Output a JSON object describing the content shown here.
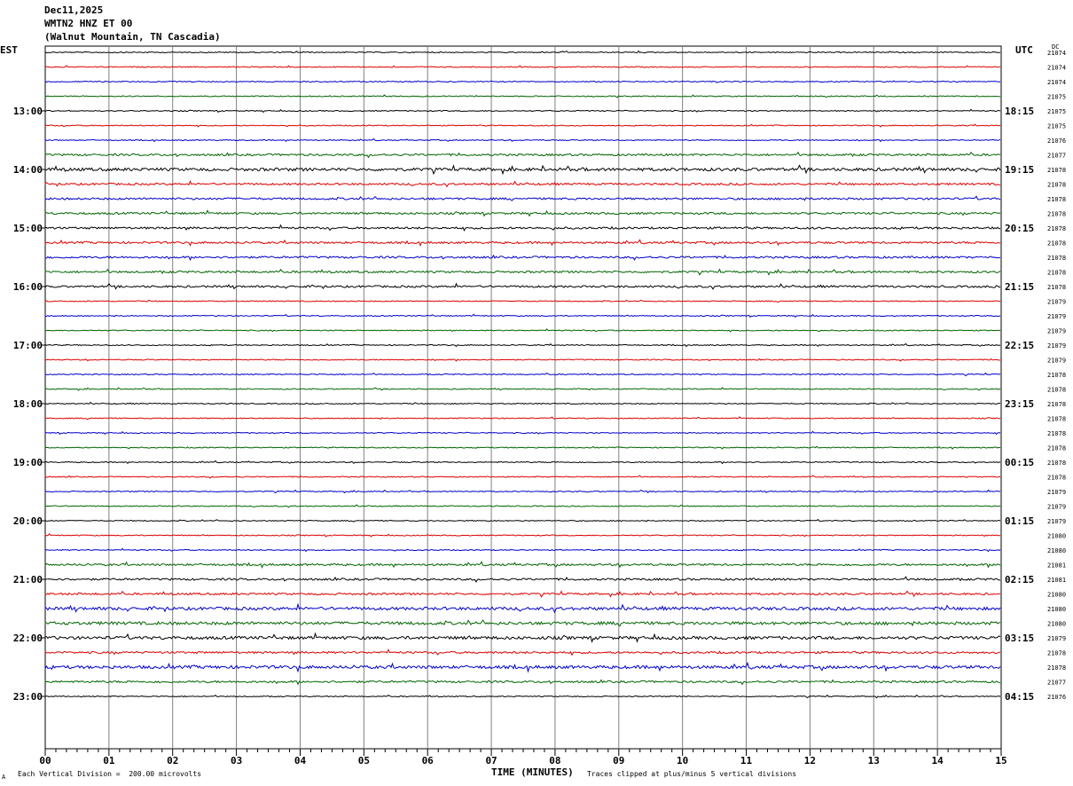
{
  "header": {
    "date": "Dec11,2025",
    "station": "WMTN2 HNZ ET 00",
    "location": "(Walnut Mountain, TN Cascadia)"
  },
  "left_tz": "EST",
  "right_tz": "UTC",
  "dc_header": "DC",
  "footer": {
    "scale": "Each Vertical Division =  200.00 microvolts",
    "clip": "Traces clipped at plus/minus 5 vertical divisions",
    "corner": "A"
  },
  "colors": {
    "trace_cycle": [
      "#000000",
      "#dd0000",
      "#0000cc",
      "#006400"
    ],
    "grid": "#808080"
  },
  "chart_data": {
    "type": "line",
    "subtype": "helicorder",
    "xlabel": "TIME (MINUTES)",
    "xlim": [
      0,
      15
    ],
    "x_ticks": [
      "00",
      "01",
      "02",
      "03",
      "04",
      "05",
      "06",
      "07",
      "08",
      "09",
      "10",
      "11",
      "12",
      "13",
      "14",
      "15"
    ],
    "lines_per_hour": 4,
    "left_hour_labels": [
      "13:00",
      "14:00",
      "15:00",
      "16:00",
      "17:00",
      "18:00",
      "19:00",
      "20:00",
      "21:00",
      "22:00",
      "23:00"
    ],
    "right_hour_labels": [
      "18:15",
      "19:15",
      "20:15",
      "21:15",
      "22:15",
      "23:15",
      "00:15",
      "01:15",
      "02:15",
      "03:15",
      "04:15"
    ],
    "dc_offsets": [
      "21074",
      "21074",
      "21074",
      "21075",
      "21075",
      "21075",
      "21076",
      "21077",
      "21078",
      "21078",
      "21078",
      "21078",
      "21078",
      "21078",
      "21078",
      "21078",
      "21078",
      "21079",
      "21079",
      "21079",
      "21079",
      "21079",
      "21078",
      "21078",
      "21078",
      "21078",
      "21078",
      "21078",
      "21078",
      "21078",
      "21079",
      "21079",
      "21079",
      "21080",
      "21080",
      "21081",
      "21081",
      "21080",
      "21080",
      "21080",
      "21079",
      "21078",
      "21078",
      "21077",
      "21076"
    ],
    "trace_activity": [
      1,
      1,
      1,
      1,
      1,
      1,
      1,
      2,
      3,
      2,
      2,
      2,
      2,
      2,
      2,
      2,
      2,
      1,
      1,
      1,
      1,
      1,
      1,
      1,
      1,
      1,
      1,
      1,
      1,
      1,
      1,
      1,
      1,
      1,
      1,
      2,
      2,
      2,
      3,
      3,
      3,
      2,
      3,
      2,
      1
    ],
    "series": [
      {
        "values": []
      }
    ],
    "scale_note": "Each Vertical Division =  200.00 microvolts",
    "clip_note": "Traces clipped at plus/minus 5 vertical divisions"
  }
}
